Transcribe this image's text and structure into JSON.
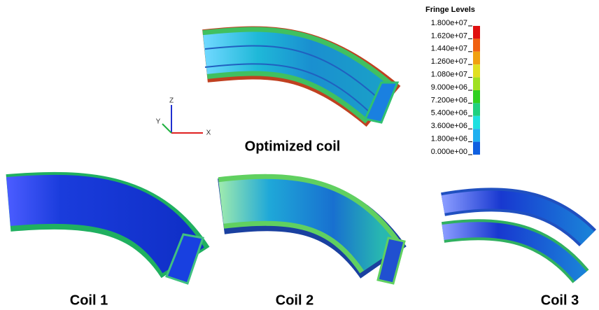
{
  "legend": {
    "title": "Fringe Levels",
    "levels": [
      "1.800e+07",
      "1.620e+07",
      "1.440e+07",
      "1.260e+07",
      "1.080e+07",
      "9.000e+06",
      "7.200e+06",
      "5.400e+06",
      "3.600e+06",
      "1.800e+06",
      "0.000e+00"
    ]
  },
  "triad": {
    "z": "Z",
    "y": "Y",
    "x": "X"
  },
  "views": [
    {
      "label": "Optimized coil"
    },
    {
      "label": "Coil 1"
    },
    {
      "label": "Coil 2"
    },
    {
      "label": "Coil 3"
    }
  ]
}
